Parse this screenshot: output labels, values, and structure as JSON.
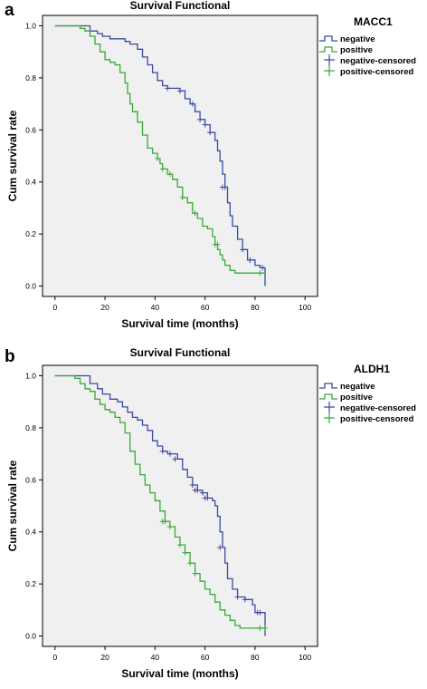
{
  "colors": {
    "negative": "#3b4aa3",
    "positive": "#3aa83a",
    "plot_background": "#f0f0f0",
    "axis": "#000000"
  },
  "chart_data": [
    {
      "type": "line",
      "step": true,
      "panel_label": "a",
      "title": "Survival Functional",
      "xlabel": "Survival time (months)",
      "ylabel": "Cum survival rate",
      "xlim": [
        -5,
        105
      ],
      "ylim": [
        -0.04,
        1.04
      ],
      "x_ticks": [
        0,
        20,
        40,
        60,
        80,
        100
      ],
      "y_ticks": [
        0.0,
        0.2,
        0.4,
        0.6,
        0.8,
        1.0
      ],
      "x_tick_labels": [
        "0",
        "20",
        "40",
        "60",
        "80",
        "100"
      ],
      "y_tick_labels": [
        "0.0",
        "0.2",
        "0.4",
        "0.6",
        "0.8",
        "1.0"
      ],
      "legend": {
        "title": "MACC1",
        "placement": "top-right outside",
        "entries": [
          "negative",
          "positive",
          "negative-censored",
          "positive-censored"
        ]
      },
      "series": [
        {
          "name": "negative",
          "color_key": "negative",
          "points": [
            [
              0,
              1.0
            ],
            [
              12,
              1.0
            ],
            [
              14,
              0.98
            ],
            [
              17,
              0.97
            ],
            [
              19,
              0.96
            ],
            [
              22,
              0.95
            ],
            [
              26,
              0.95
            ],
            [
              28,
              0.94
            ],
            [
              30,
              0.93
            ],
            [
              33,
              0.91
            ],
            [
              35,
              0.88
            ],
            [
              37,
              0.85
            ],
            [
              39,
              0.82
            ],
            [
              41,
              0.79
            ],
            [
              43,
              0.77
            ],
            [
              45,
              0.76
            ],
            [
              48,
              0.76
            ],
            [
              50,
              0.75
            ],
            [
              52,
              0.72
            ],
            [
              54,
              0.7
            ],
            [
              56,
              0.67
            ],
            [
              58,
              0.64
            ],
            [
              60,
              0.62
            ],
            [
              62,
              0.59
            ],
            [
              64,
              0.56
            ],
            [
              65,
              0.52
            ],
            [
              66,
              0.48
            ],
            [
              67,
              0.43
            ],
            [
              68,
              0.38
            ],
            [
              69,
              0.32
            ],
            [
              70,
              0.27
            ],
            [
              71,
              0.23
            ],
            [
              73,
              0.18
            ],
            [
              75,
              0.14
            ],
            [
              77,
              0.1
            ],
            [
              80,
              0.08
            ],
            [
              82,
              0.07
            ],
            [
              84,
              0.07
            ],
            [
              84,
              0.0
            ]
          ],
          "censored": [
            [
              45,
              0.76
            ],
            [
              50,
              0.75
            ],
            [
              55,
              0.7
            ],
            [
              58,
              0.64
            ],
            [
              60,
              0.62
            ],
            [
              62,
              0.59
            ],
            [
              67,
              0.38
            ],
            [
              68,
              0.38
            ],
            [
              75,
              0.14
            ],
            [
              78,
              0.1
            ],
            [
              83,
              0.07
            ]
          ]
        },
        {
          "name": "positive",
          "color_key": "positive",
          "points": [
            [
              0,
              1.0
            ],
            [
              8,
              1.0
            ],
            [
              10,
              0.99
            ],
            [
              12,
              0.98
            ],
            [
              14,
              0.96
            ],
            [
              16,
              0.93
            ],
            [
              18,
              0.9
            ],
            [
              20,
              0.87
            ],
            [
              22,
              0.86
            ],
            [
              24,
              0.85
            ],
            [
              26,
              0.82
            ],
            [
              28,
              0.78
            ],
            [
              29,
              0.74
            ],
            [
              30,
              0.7
            ],
            [
              31,
              0.67
            ],
            [
              33,
              0.63
            ],
            [
              35,
              0.58
            ],
            [
              37,
              0.53
            ],
            [
              39,
              0.51
            ],
            [
              41,
              0.49
            ],
            [
              42,
              0.47
            ],
            [
              43,
              0.45
            ],
            [
              45,
              0.43
            ],
            [
              47,
              0.41
            ],
            [
              49,
              0.38
            ],
            [
              51,
              0.34
            ],
            [
              53,
              0.32
            ],
            [
              55,
              0.28
            ],
            [
              57,
              0.26
            ],
            [
              59,
              0.23
            ],
            [
              61,
              0.22
            ],
            [
              63,
              0.19
            ],
            [
              64,
              0.16
            ],
            [
              65,
              0.14
            ],
            [
              66,
              0.12
            ],
            [
              67,
              0.1
            ],
            [
              68,
              0.08
            ],
            [
              70,
              0.06
            ],
            [
              72,
              0.05
            ],
            [
              74,
              0.05
            ],
            [
              76,
              0.05
            ],
            [
              84,
              0.05
            ]
          ],
          "censored": [
            [
              41,
              0.49
            ],
            [
              43,
              0.45
            ],
            [
              46,
              0.43
            ],
            [
              51,
              0.34
            ],
            [
              56,
              0.28
            ],
            [
              64,
              0.16
            ],
            [
              65,
              0.16
            ],
            [
              82,
              0.05
            ]
          ]
        }
      ]
    },
    {
      "type": "line",
      "step": true,
      "panel_label": "b",
      "title": "Survival Functional",
      "xlabel": "Survival time (months)",
      "ylabel": "Cum survival rate",
      "xlim": [
        -5,
        105
      ],
      "ylim": [
        -0.04,
        1.04
      ],
      "x_ticks": [
        0,
        20,
        40,
        60,
        80,
        100
      ],
      "y_ticks": [
        0.0,
        0.2,
        0.4,
        0.6,
        0.8,
        1.0
      ],
      "x_tick_labels": [
        "0",
        "20",
        "40",
        "60",
        "80",
        "100"
      ],
      "y_tick_labels": [
        "0.0",
        "0.2",
        "0.4",
        "0.6",
        "0.8",
        "1.0"
      ],
      "legend": {
        "title": "ALDH1",
        "placement": "top-right outside",
        "entries": [
          "negative",
          "positive",
          "negative-censored",
          "positive-censored"
        ]
      },
      "series": [
        {
          "name": "negative",
          "color_key": "negative",
          "points": [
            [
              0,
              1.0
            ],
            [
              12,
              1.0
            ],
            [
              14,
              0.97
            ],
            [
              17,
              0.95
            ],
            [
              19,
              0.93
            ],
            [
              22,
              0.91
            ],
            [
              25,
              0.9
            ],
            [
              27,
              0.88
            ],
            [
              29,
              0.86
            ],
            [
              31,
              0.84
            ],
            [
              33,
              0.83
            ],
            [
              35,
              0.81
            ],
            [
              37,
              0.79
            ],
            [
              39,
              0.75
            ],
            [
              41,
              0.73
            ],
            [
              43,
              0.71
            ],
            [
              45,
              0.7
            ],
            [
              47,
              0.7
            ],
            [
              49,
              0.68
            ],
            [
              51,
              0.64
            ],
            [
              53,
              0.61
            ],
            [
              55,
              0.58
            ],
            [
              57,
              0.56
            ],
            [
              59,
              0.55
            ],
            [
              61,
              0.53
            ],
            [
              63,
              0.52
            ],
            [
              64,
              0.5
            ],
            [
              65,
              0.46
            ],
            [
              66,
              0.4
            ],
            [
              67,
              0.34
            ],
            [
              68,
              0.28
            ],
            [
              69,
              0.22
            ],
            [
              71,
              0.18
            ],
            [
              73,
              0.15
            ],
            [
              76,
              0.14
            ],
            [
              79,
              0.12
            ],
            [
              80,
              0.09
            ],
            [
              82,
              0.09
            ],
            [
              84,
              0.09
            ],
            [
              84,
              0.0
            ]
          ],
          "censored": [
            [
              43,
              0.71
            ],
            [
              46,
              0.7
            ],
            [
              48,
              0.68
            ],
            [
              55,
              0.58
            ],
            [
              56,
              0.56
            ],
            [
              57,
              0.56
            ],
            [
              59,
              0.55
            ],
            [
              60,
              0.53
            ],
            [
              61,
              0.53
            ],
            [
              66,
              0.34
            ],
            [
              73,
              0.15
            ],
            [
              76,
              0.14
            ],
            [
              81,
              0.09
            ],
            [
              82,
              0.09
            ]
          ]
        },
        {
          "name": "positive",
          "color_key": "positive",
          "points": [
            [
              0,
              1.0
            ],
            [
              6,
              1.0
            ],
            [
              8,
              0.99
            ],
            [
              10,
              0.97
            ],
            [
              12,
              0.95
            ],
            [
              14,
              0.94
            ],
            [
              16,
              0.91
            ],
            [
              18,
              0.89
            ],
            [
              20,
              0.87
            ],
            [
              22,
              0.86
            ],
            [
              24,
              0.84
            ],
            [
              26,
              0.82
            ],
            [
              28,
              0.78
            ],
            [
              30,
              0.71
            ],
            [
              32,
              0.66
            ],
            [
              34,
              0.62
            ],
            [
              36,
              0.58
            ],
            [
              38,
              0.55
            ],
            [
              40,
              0.52
            ],
            [
              42,
              0.48
            ],
            [
              44,
              0.44
            ],
            [
              46,
              0.42
            ],
            [
              48,
              0.38
            ],
            [
              50,
              0.35
            ],
            [
              52,
              0.32
            ],
            [
              54,
              0.28
            ],
            [
              56,
              0.24
            ],
            [
              58,
              0.21
            ],
            [
              60,
              0.18
            ],
            [
              62,
              0.16
            ],
            [
              64,
              0.13
            ],
            [
              66,
              0.1
            ],
            [
              68,
              0.08
            ],
            [
              70,
              0.06
            ],
            [
              72,
              0.04
            ],
            [
              74,
              0.03
            ],
            [
              76,
              0.03
            ],
            [
              84,
              0.03
            ]
          ],
          "censored": [
            [
              43,
              0.44
            ],
            [
              44,
              0.44
            ],
            [
              46,
              0.42
            ],
            [
              50,
              0.35
            ],
            [
              52,
              0.32
            ],
            [
              54,
              0.28
            ],
            [
              56,
              0.24
            ],
            [
              82,
              0.03
            ],
            [
              84,
              0.03
            ]
          ]
        }
      ]
    }
  ]
}
